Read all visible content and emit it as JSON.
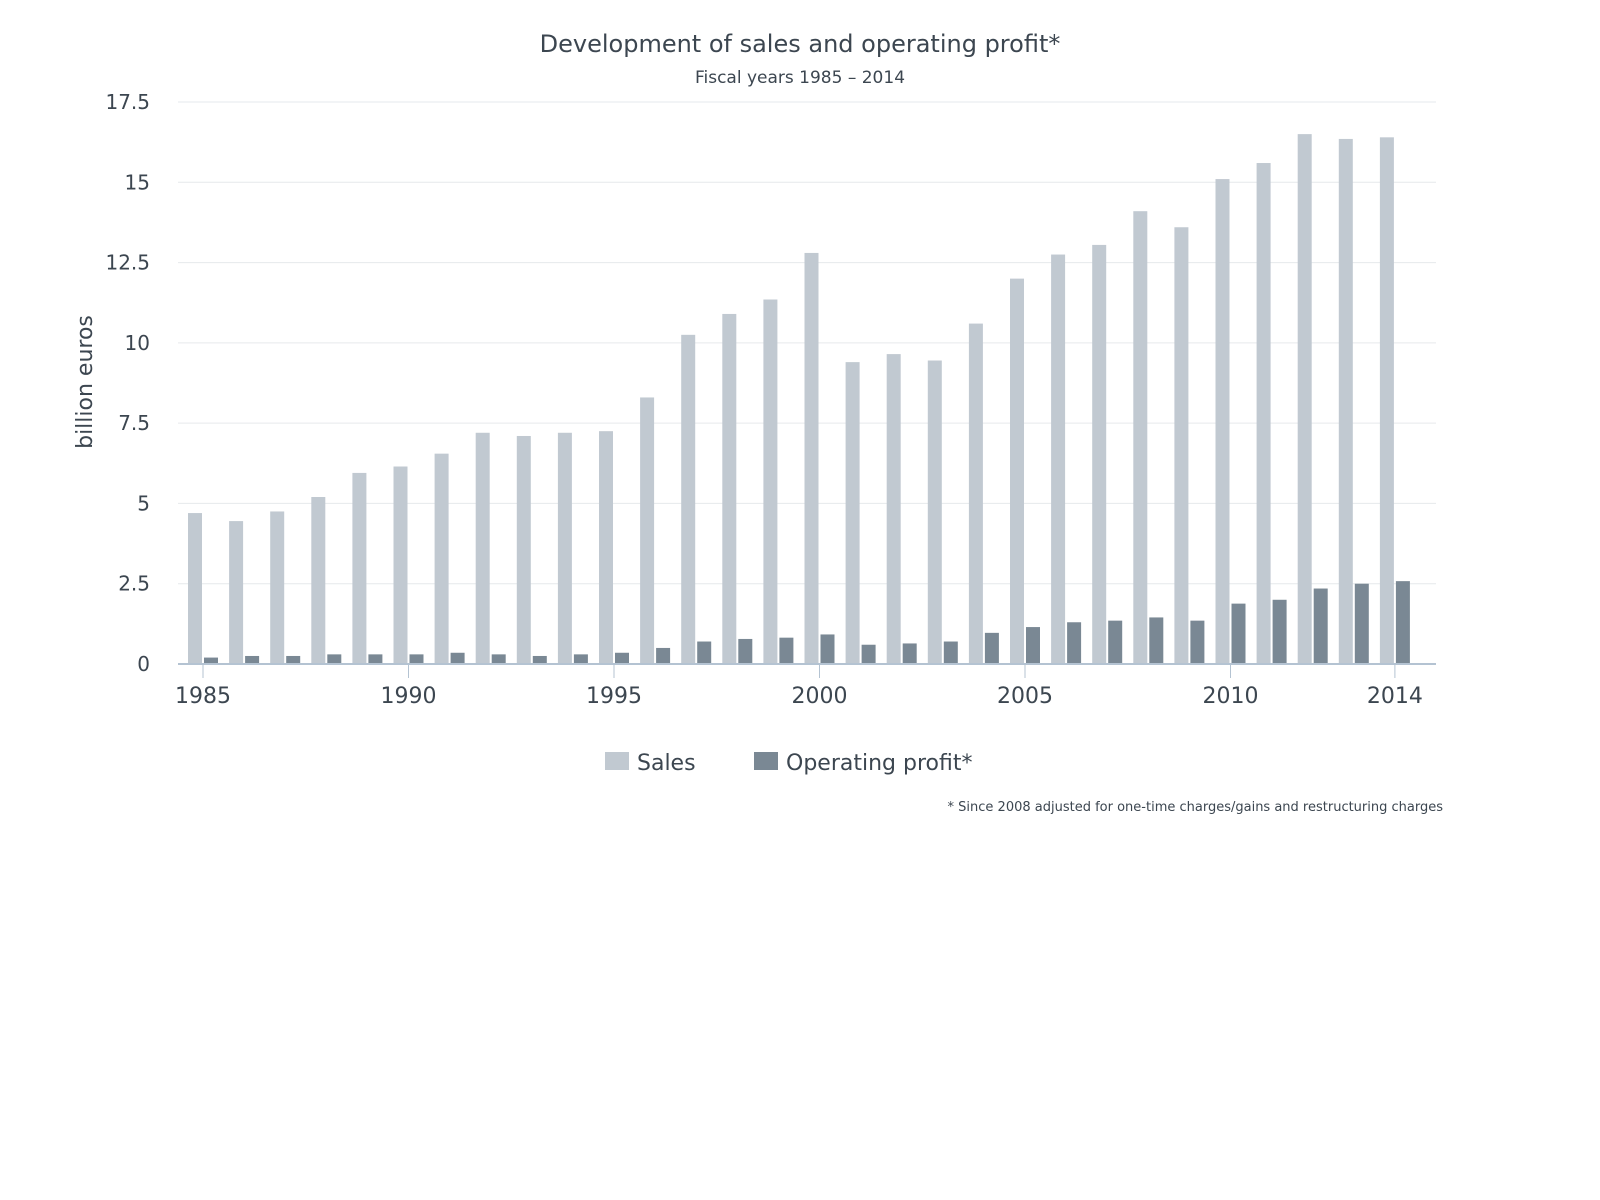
{
  "colors": {
    "sales": "#c1c9d1",
    "profit": "#7a8894",
    "text": "#3c4650",
    "grid": "#e6e9ec",
    "axis": "#b4c3d2"
  },
  "chart_data": {
    "type": "bar",
    "title": "Development of sales and operating profit*",
    "subtitle": "Fiscal years 1985 – 2014",
    "ylabel": "billion euros",
    "xlabel": "",
    "ylim": [
      0,
      17.5
    ],
    "yticks": [
      0,
      2.5,
      5,
      7.5,
      10,
      12.5,
      15,
      17.5
    ],
    "ytick_labels": [
      "0",
      "2.5",
      "5",
      "7.5",
      "10",
      "12.5",
      "15",
      "17.5"
    ],
    "xtick_labels": [
      "1985",
      "1990",
      "1995",
      "2000",
      "2005",
      "2010",
      "2014"
    ],
    "grid": true,
    "legend_position": "bottom-center",
    "footnote": "* Since 2008 adjusted for one-time charges/gains and restructuring charges",
    "categories": [
      "1985",
      "1986",
      "1987",
      "1988",
      "1989",
      "1990",
      "1991",
      "1992",
      "1993",
      "1994",
      "1995",
      "1996",
      "1997",
      "1998",
      "1999",
      "2000",
      "2001",
      "2002",
      "2003",
      "2004",
      "2005",
      "2006",
      "2007",
      "2008",
      "2009",
      "2010",
      "2011",
      "2012",
      "2013",
      "2014"
    ],
    "series": [
      {
        "name": "Sales",
        "values": [
          4.7,
          4.45,
          4.75,
          5.2,
          5.95,
          6.15,
          6.55,
          7.2,
          7.1,
          7.2,
          7.25,
          8.3,
          10.25,
          10.9,
          11.35,
          12.8,
          9.4,
          9.65,
          9.45,
          10.6,
          12.0,
          12.75,
          13.05,
          14.1,
          13.6,
          15.1,
          15.6,
          16.5,
          16.35,
          16.4
        ]
      },
      {
        "name": "Operating profit*",
        "values": [
          0.2,
          0.25,
          0.25,
          0.3,
          0.3,
          0.3,
          0.35,
          0.3,
          0.25,
          0.3,
          0.35,
          0.5,
          0.7,
          0.78,
          0.82,
          0.92,
          0.6,
          0.64,
          0.7,
          0.97,
          1.15,
          1.3,
          1.35,
          1.45,
          1.35,
          1.88,
          2.0,
          2.35,
          2.5,
          2.58
        ]
      }
    ]
  }
}
